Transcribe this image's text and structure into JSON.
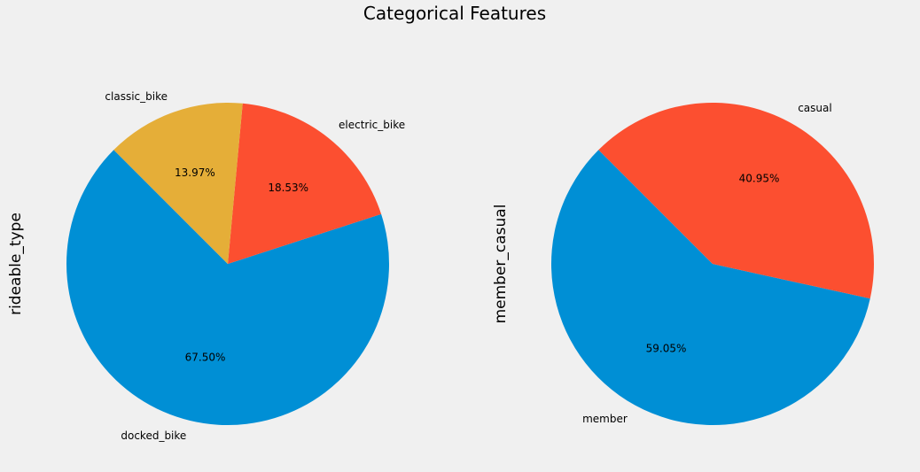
{
  "figure": {
    "title": "Categorical Features",
    "background": "#f0f0f0"
  },
  "chart_data": [
    {
      "type": "pie",
      "ylabel": "rideable_type",
      "slices": [
        {
          "label": "docked_bike",
          "value": 67.5,
          "pct_text": "67.50%",
          "color": "#008fd5"
        },
        {
          "label": "electric_bike",
          "value": 18.53,
          "pct_text": "18.53%",
          "color": "#fc4f30"
        },
        {
          "label": "classic_bike",
          "value": 13.97,
          "pct_text": "13.97%",
          "color": "#e5ae38"
        }
      ]
    },
    {
      "type": "pie",
      "ylabel": "member_casual",
      "slices": [
        {
          "label": "member",
          "value": 59.05,
          "pct_text": "59.05%",
          "color": "#008fd5"
        },
        {
          "label": "casual",
          "value": 40.95,
          "pct_text": "40.95%",
          "color": "#fc4f30"
        }
      ]
    }
  ]
}
